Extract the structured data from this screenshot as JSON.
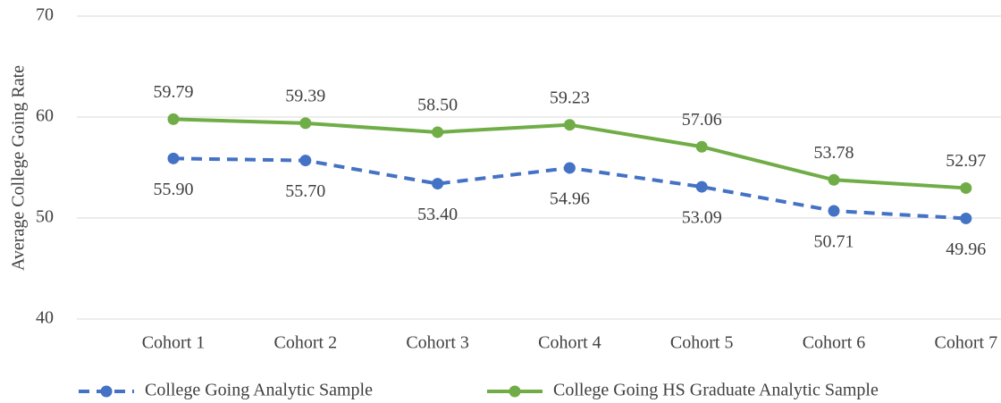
{
  "chart_data": {
    "type": "line",
    "y_label": "Average College Going Rate",
    "categories": [
      "Cohort 1",
      "Cohort 2",
      "Cohort 3",
      "Cohort 4",
      "Cohort 5",
      "Cohort 6",
      "Cohort 7"
    ],
    "series": [
      {
        "name": "College Going Analytic Sample",
        "color": "#4472c4",
        "line_style": "dashed",
        "label_position": "below",
        "values": [
          55.9,
          55.7,
          53.4,
          54.96,
          53.09,
          50.71,
          49.96
        ],
        "value_labels": [
          "55.90",
          "55.70",
          "53.40",
          "54.96",
          "53.09",
          "50.71",
          "49.96"
        ]
      },
      {
        "name": "College Going HS Graduate Analytic Sample",
        "color": "#70ad47",
        "line_style": "solid",
        "label_position": "above",
        "values": [
          59.79,
          59.39,
          58.5,
          59.23,
          57.06,
          53.78,
          52.97
        ],
        "value_labels": [
          "59.79",
          "59.39",
          "58.50",
          "59.23",
          "57.06",
          "53.78",
          "52.97"
        ]
      }
    ],
    "ylim": [
      40,
      70
    ],
    "yticks": [
      40,
      50,
      60,
      70
    ],
    "grid": true,
    "legend": "bottom"
  }
}
